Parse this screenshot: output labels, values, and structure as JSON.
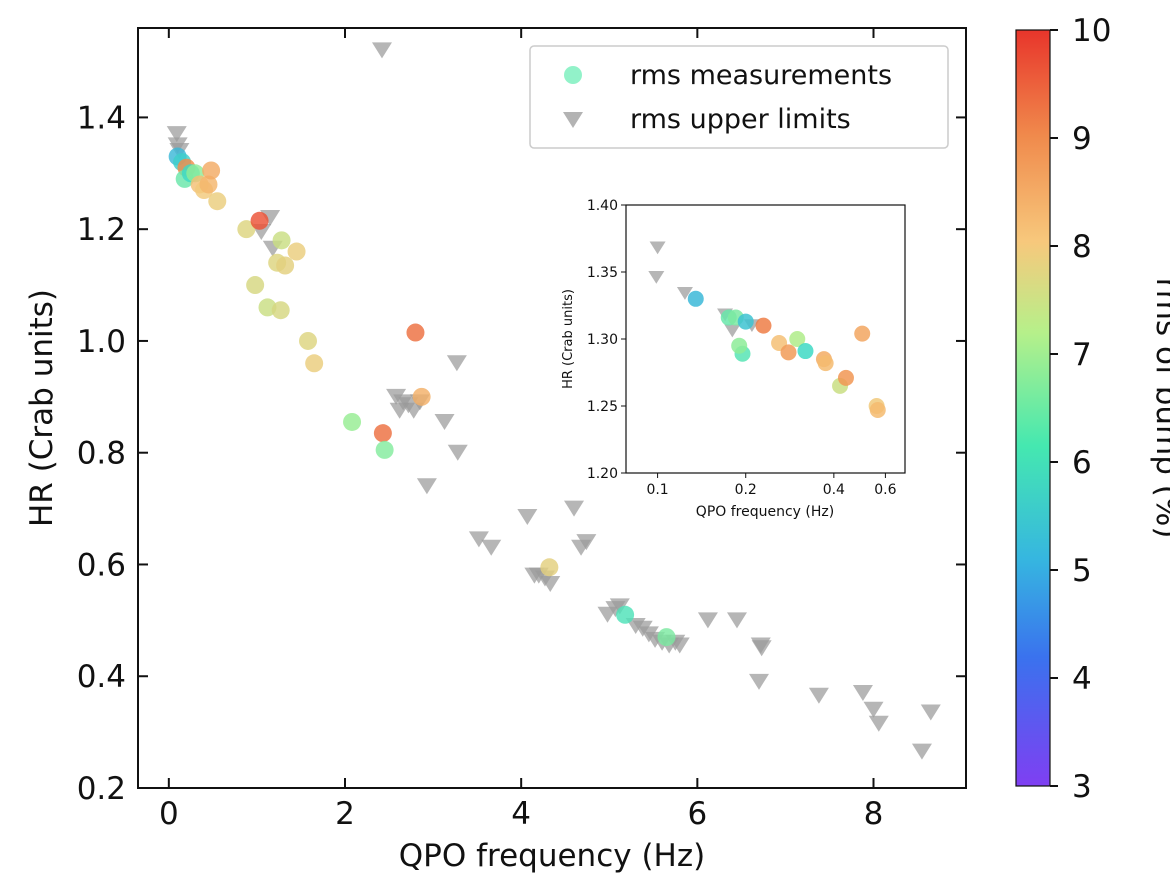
{
  "chart_data": {
    "type": "scatter",
    "xlabel": "QPO frequency (Hz)",
    "ylabel": "HR (Crab units)",
    "xlim": [
      -0.35,
      9.05
    ],
    "ylim": [
      0.2,
      1.56
    ],
    "xticks": [
      0,
      2,
      4,
      6,
      8
    ],
    "yticks": [
      0.2,
      0.4,
      0.6,
      0.8,
      1.0,
      1.2,
      1.4
    ],
    "ytick_labels": [
      "0.2",
      "0.4",
      "0.6",
      "0.8",
      "1.0",
      "1.2",
      "1.4"
    ],
    "legend": {
      "position": "top-right",
      "entries": [
        "rms measurements",
        "rms upper limits"
      ]
    },
    "colorbar": {
      "label": "rms of bump (%)",
      "range": [
        3,
        10
      ],
      "ticks": [
        3,
        4,
        5,
        6,
        7,
        8,
        9,
        10
      ],
      "colormap": [
        "#7f3ff2",
        "#3aa0e6",
        "#3fe0c0",
        "#a8f08a",
        "#f5c77a",
        "#f08a4a",
        "#e8352b"
      ]
    },
    "series": [
      {
        "name": "rms measurements",
        "marker": "circle",
        "points": [
          {
            "x": 0.1,
            "y": 1.33,
            "rms": 4.6
          },
          {
            "x": 0.15,
            "y": 1.32,
            "rms": 5.0
          },
          {
            "x": 0.2,
            "y": 1.31,
            "rms": 8.8
          },
          {
            "x": 0.18,
            "y": 1.29,
            "rms": 5.8
          },
          {
            "x": 0.25,
            "y": 1.3,
            "rms": 5.2
          },
          {
            "x": 0.3,
            "y": 1.3,
            "rms": 6.2
          },
          {
            "x": 0.35,
            "y": 1.28,
            "rms": 7.8
          },
          {
            "x": 0.4,
            "y": 1.27,
            "rms": 7.6
          },
          {
            "x": 0.45,
            "y": 1.28,
            "rms": 8.0
          },
          {
            "x": 0.48,
            "y": 1.305,
            "rms": 8.2
          },
          {
            "x": 0.55,
            "y": 1.25,
            "rms": 7.5
          },
          {
            "x": 0.88,
            "y": 1.2,
            "rms": 7.3
          },
          {
            "x": 1.03,
            "y": 1.215,
            "rms": 9.6
          },
          {
            "x": 0.98,
            "y": 1.1,
            "rms": 7.2
          },
          {
            "x": 1.12,
            "y": 1.06,
            "rms": 7.0
          },
          {
            "x": 1.23,
            "y": 1.14,
            "rms": 7.3
          },
          {
            "x": 1.28,
            "y": 1.18,
            "rms": 7.0
          },
          {
            "x": 1.32,
            "y": 1.135,
            "rms": 7.4
          },
          {
            "x": 1.27,
            "y": 1.055,
            "rms": 7.2
          },
          {
            "x": 1.45,
            "y": 1.16,
            "rms": 7.5
          },
          {
            "x": 1.58,
            "y": 1.0,
            "rms": 7.3
          },
          {
            "x": 1.65,
            "y": 0.96,
            "rms": 7.5
          },
          {
            "x": 2.08,
            "y": 0.855,
            "rms": 6.3
          },
          {
            "x": 2.43,
            "y": 0.835,
            "rms": 9.2
          },
          {
            "x": 2.45,
            "y": 0.805,
            "rms": 6.1
          },
          {
            "x": 2.8,
            "y": 1.015,
            "rms": 9.2
          },
          {
            "x": 2.87,
            "y": 0.9,
            "rms": 8.1
          },
          {
            "x": 4.32,
            "y": 0.595,
            "rms": 7.4
          },
          {
            "x": 5.18,
            "y": 0.51,
            "rms": 5.5
          },
          {
            "x": 5.65,
            "y": 0.47,
            "rms": 6.0
          }
        ]
      },
      {
        "name": "rms upper limits",
        "marker": "triangle-down",
        "points": [
          {
            "x": 0.09,
            "y": 1.37
          },
          {
            "x": 0.1,
            "y": 1.35
          },
          {
            "x": 0.12,
            "y": 1.34
          },
          {
            "x": 1.05,
            "y": 1.195
          },
          {
            "x": 1.15,
            "y": 1.22
          },
          {
            "x": 1.18,
            "y": 1.165
          },
          {
            "x": 2.42,
            "y": 1.52
          },
          {
            "x": 2.58,
            "y": 0.9
          },
          {
            "x": 2.62,
            "y": 0.875
          },
          {
            "x": 2.66,
            "y": 0.89
          },
          {
            "x": 2.72,
            "y": 0.885
          },
          {
            "x": 2.78,
            "y": 0.875
          },
          {
            "x": 2.85,
            "y": 0.89
          },
          {
            "x": 2.93,
            "y": 0.74
          },
          {
            "x": 3.13,
            "y": 0.855
          },
          {
            "x": 3.27,
            "y": 0.96
          },
          {
            "x": 3.28,
            "y": 0.8
          },
          {
            "x": 3.52,
            "y": 0.645
          },
          {
            "x": 3.66,
            "y": 0.63
          },
          {
            "x": 4.07,
            "y": 0.685
          },
          {
            "x": 4.15,
            "y": 0.58
          },
          {
            "x": 4.2,
            "y": 0.58
          },
          {
            "x": 4.27,
            "y": 0.575
          },
          {
            "x": 4.33,
            "y": 0.565
          },
          {
            "x": 4.6,
            "y": 0.7
          },
          {
            "x": 4.68,
            "y": 0.63
          },
          {
            "x": 4.74,
            "y": 0.64
          },
          {
            "x": 4.98,
            "y": 0.51
          },
          {
            "x": 5.07,
            "y": 0.52
          },
          {
            "x": 5.12,
            "y": 0.525
          },
          {
            "x": 5.3,
            "y": 0.49
          },
          {
            "x": 5.38,
            "y": 0.485
          },
          {
            "x": 5.45,
            "y": 0.475
          },
          {
            "x": 5.52,
            "y": 0.465
          },
          {
            "x": 5.6,
            "y": 0.46
          },
          {
            "x": 5.68,
            "y": 0.455
          },
          {
            "x": 5.75,
            "y": 0.46
          },
          {
            "x": 5.8,
            "y": 0.455
          },
          {
            "x": 6.12,
            "y": 0.5
          },
          {
            "x": 6.45,
            "y": 0.5
          },
          {
            "x": 6.72,
            "y": 0.455
          },
          {
            "x": 6.73,
            "y": 0.45
          },
          {
            "x": 6.7,
            "y": 0.39
          },
          {
            "x": 7.38,
            "y": 0.365
          },
          {
            "x": 7.88,
            "y": 0.37
          },
          {
            "x": 8.0,
            "y": 0.34
          },
          {
            "x": 8.06,
            "y": 0.315
          },
          {
            "x": 8.55,
            "y": 0.265
          },
          {
            "x": 8.65,
            "y": 0.335
          }
        ]
      }
    ],
    "inset": {
      "xlabel": "QPO frequency (Hz)",
      "ylabel": "HR (Crab units)",
      "xscale": "log",
      "xlim": [
        0.078,
        0.7
      ],
      "ylim": [
        1.2,
        1.4
      ],
      "xticks": [
        0.1,
        0.2,
        0.4,
        0.6
      ],
      "xtick_labels": [
        "0.1",
        "0.2",
        "0.4",
        "0.6"
      ],
      "yticks": [
        1.2,
        1.25,
        1.3,
        1.35,
        1.4
      ],
      "ytick_labels": [
        "1.20",
        "1.25",
        "1.30",
        "1.35",
        "1.40"
      ],
      "measurements": [
        {
          "x": 0.135,
          "y": 1.33,
          "rms": 4.6
        },
        {
          "x": 0.175,
          "y": 1.316,
          "rms": 5.8
        },
        {
          "x": 0.185,
          "y": 1.316,
          "rms": 6.0
        },
        {
          "x": 0.2,
          "y": 1.313,
          "rms": 4.8
        },
        {
          "x": 0.195,
          "y": 1.289,
          "rms": 5.6
        },
        {
          "x": 0.19,
          "y": 1.295,
          "rms": 6.2
        },
        {
          "x": 0.23,
          "y": 1.31,
          "rms": 9.0
        },
        {
          "x": 0.26,
          "y": 1.297,
          "rms": 7.8
        },
        {
          "x": 0.28,
          "y": 1.29,
          "rms": 8.5
        },
        {
          "x": 0.3,
          "y": 1.3,
          "rms": 6.6
        },
        {
          "x": 0.32,
          "y": 1.291,
          "rms": 5.2
        },
        {
          "x": 0.37,
          "y": 1.285,
          "rms": 8.2
        },
        {
          "x": 0.375,
          "y": 1.282,
          "rms": 7.9
        },
        {
          "x": 0.42,
          "y": 1.265,
          "rms": 7.0
        },
        {
          "x": 0.44,
          "y": 1.271,
          "rms": 8.6
        },
        {
          "x": 0.5,
          "y": 1.304,
          "rms": 8.3
        },
        {
          "x": 0.56,
          "y": 1.25,
          "rms": 7.6
        },
        {
          "x": 0.565,
          "y": 1.247,
          "rms": 7.9
        }
      ],
      "upper_limits": [
        {
          "x": 0.1,
          "y": 1.368
        },
        {
          "x": 0.099,
          "y": 1.346
        },
        {
          "x": 0.124,
          "y": 1.334
        },
        {
          "x": 0.18,
          "y": 1.306
        },
        {
          "x": 0.17,
          "y": 1.318
        },
        {
          "x": 0.21,
          "y": 1.31
        }
      ]
    }
  }
}
